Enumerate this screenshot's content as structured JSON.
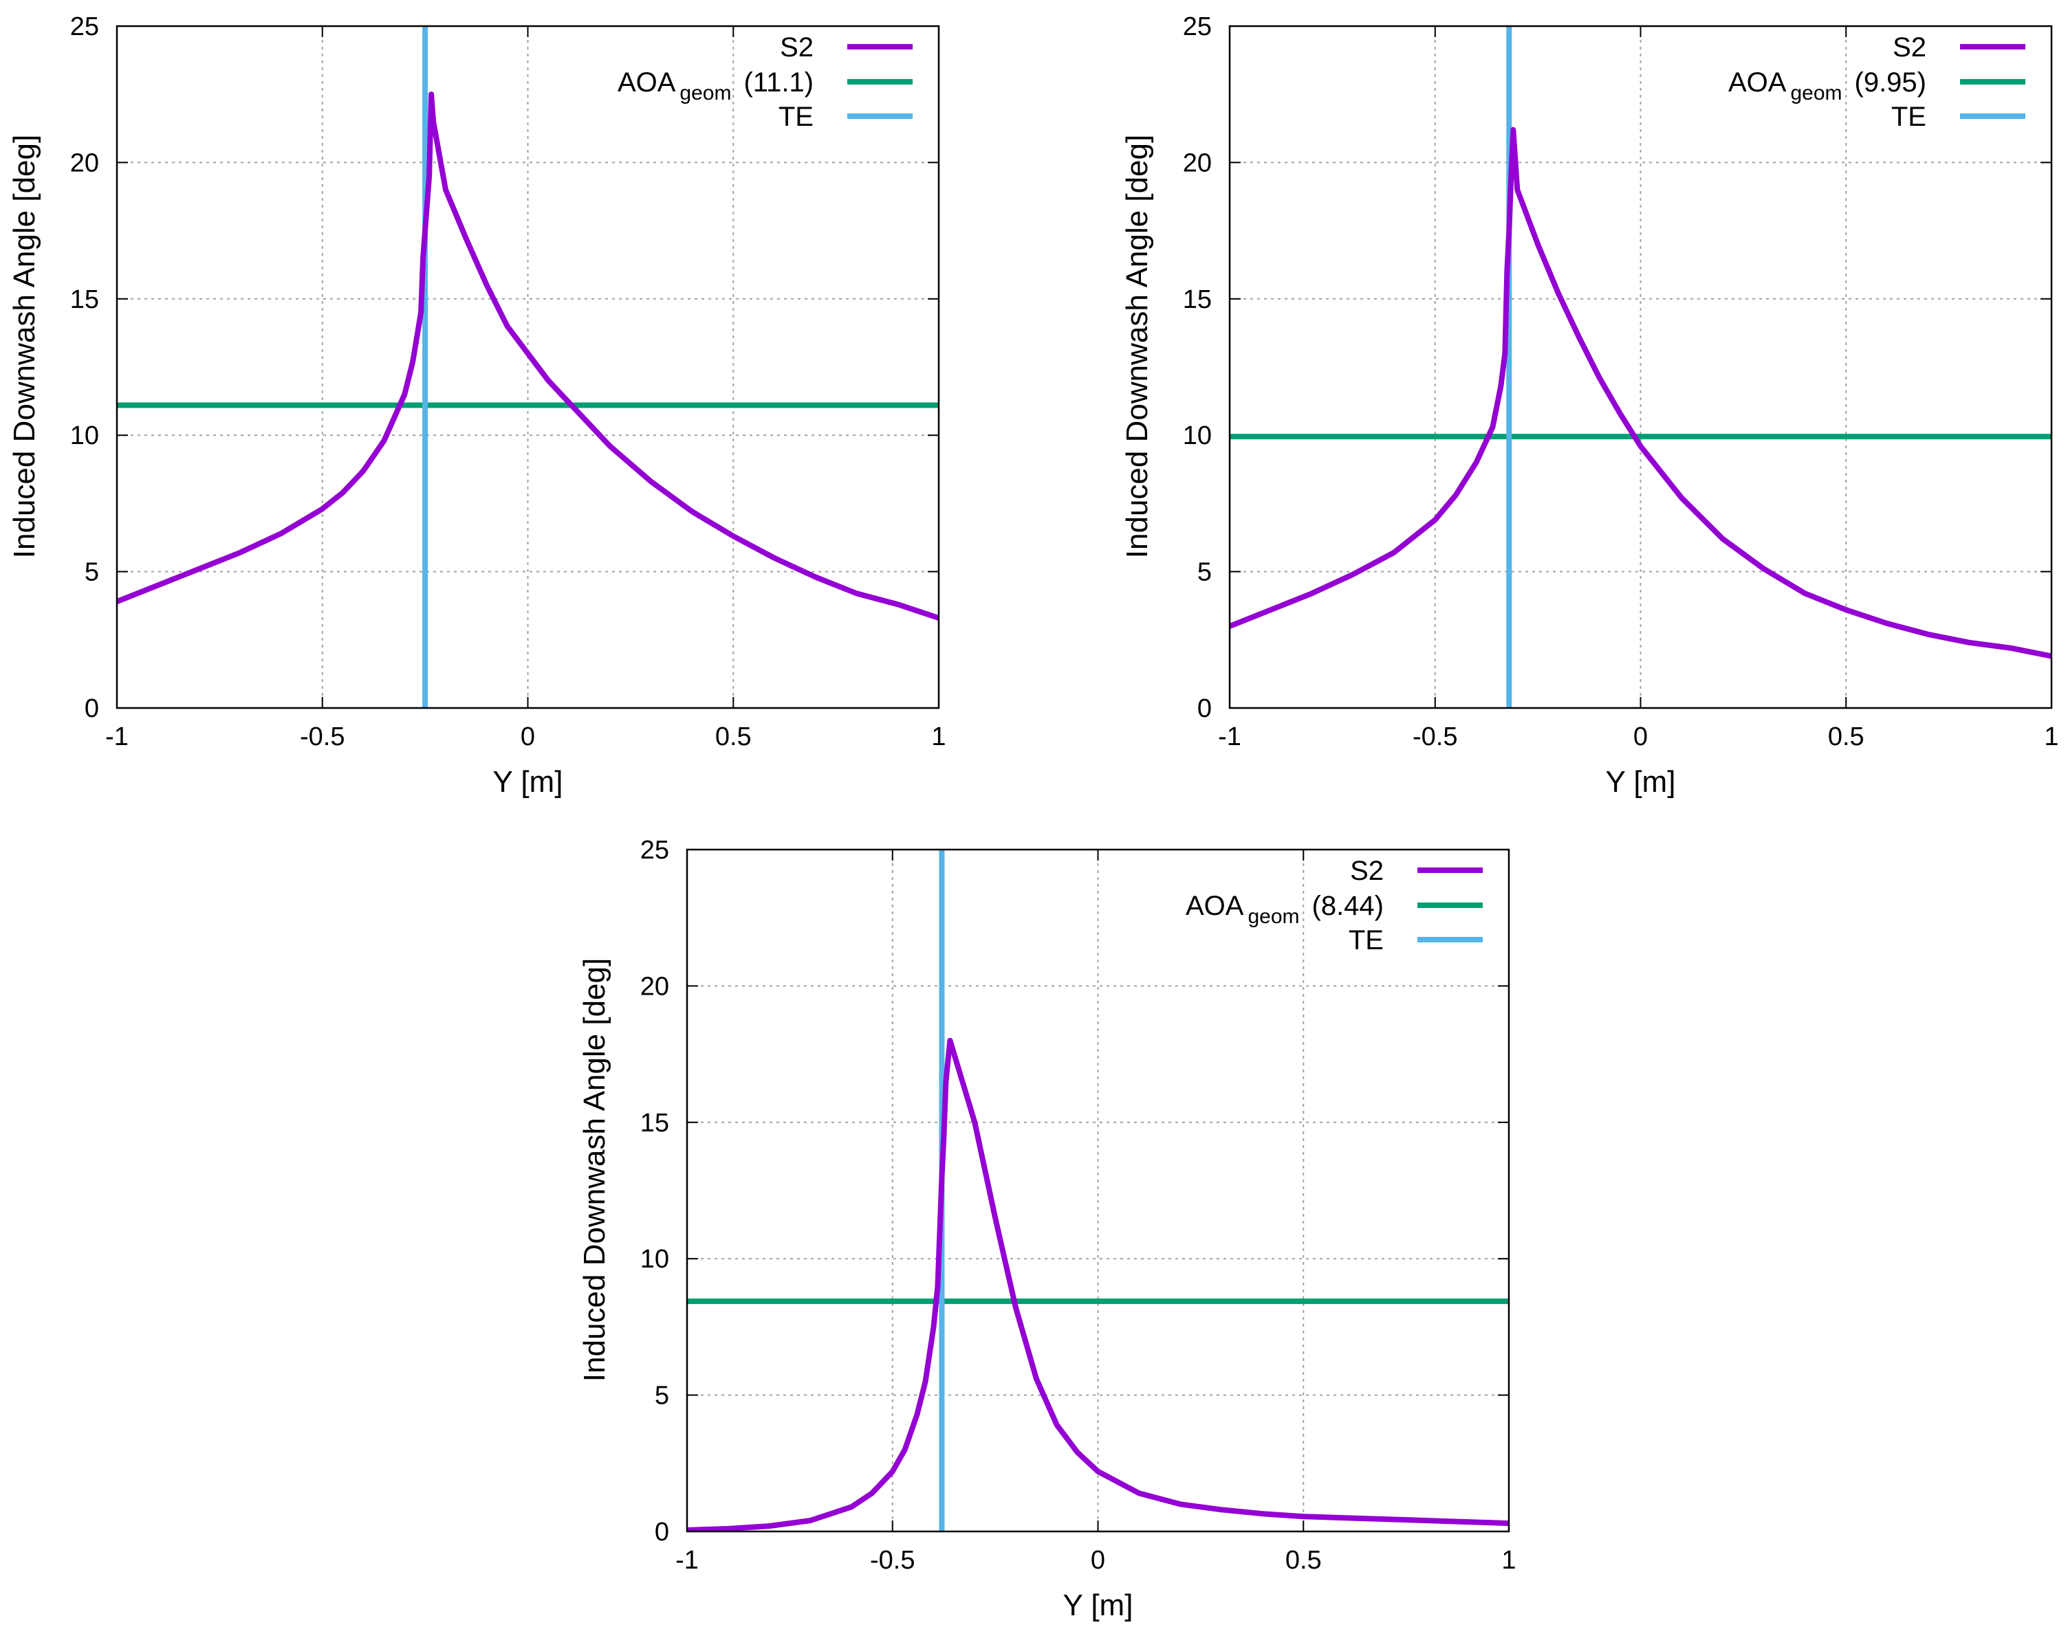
{
  "chart_data": [
    {
      "type": "line",
      "xlabel": "Y [m]",
      "ylabel": "Induced Downwash Angle [deg]",
      "xlim": [
        -1,
        1
      ],
      "ylim": [
        0,
        25
      ],
      "xticks": [
        -1,
        -0.5,
        0,
        0.5,
        1
      ],
      "xtick_labels": [
        "-1",
        "-0.5",
        "0",
        "0.5",
        "1"
      ],
      "yticks": [
        0,
        5,
        10,
        15,
        20,
        25
      ],
      "ytick_labels": [
        "0",
        "5",
        "10",
        "15",
        "20",
        "25"
      ],
      "grid": true,
      "legend_position": "top-right",
      "legend": {
        "s2": "S2",
        "aoa_main": "AOA",
        "aoa_sub": "geom",
        "aoa_value": "(11.1)",
        "te": "TE"
      },
      "colors": {
        "s2": "#9400d3",
        "aoa": "#009e73",
        "te": "#56b4e9"
      },
      "aoa_geom": 11.1,
      "te_y": -0.25,
      "series": [
        {
          "name": "S2",
          "x": [
            -1.0,
            -0.9,
            -0.8,
            -0.7,
            -0.6,
            -0.5,
            -0.45,
            -0.4,
            -0.35,
            -0.3,
            -0.28,
            -0.26,
            -0.255,
            -0.25,
            -0.24,
            -0.235,
            -0.23,
            -0.2,
            -0.15,
            -0.1,
            -0.05,
            0.0,
            0.05,
            0.1,
            0.15,
            0.2,
            0.3,
            0.4,
            0.5,
            0.6,
            0.7,
            0.8,
            0.9,
            1.0
          ],
          "y": [
            3.9,
            4.5,
            5.1,
            5.7,
            6.4,
            7.3,
            7.9,
            8.7,
            9.8,
            11.5,
            12.7,
            14.5,
            16.5,
            17.5,
            19.5,
            22.5,
            21.5,
            19.0,
            17.2,
            15.5,
            14.0,
            13.0,
            12.0,
            11.2,
            10.4,
            9.6,
            8.3,
            7.2,
            6.3,
            5.5,
            4.8,
            4.2,
            3.8,
            3.3
          ]
        }
      ]
    },
    {
      "type": "line",
      "xlabel": "Y [m]",
      "ylabel": "Induced Downwash Angle [deg]",
      "xlim": [
        -1,
        1
      ],
      "ylim": [
        0,
        25
      ],
      "xticks": [
        -1,
        -0.5,
        0,
        0.5,
        1
      ],
      "xtick_labels": [
        "-1",
        "-0.5",
        "0",
        "0.5",
        "1"
      ],
      "yticks": [
        0,
        5,
        10,
        15,
        20,
        25
      ],
      "ytick_labels": [
        "0",
        "5",
        "10",
        "15",
        "20",
        "25"
      ],
      "grid": true,
      "legend_position": "top-right",
      "legend": {
        "s2": "S2",
        "aoa_main": "AOA",
        "aoa_sub": "geom",
        "aoa_value": "(9.95)",
        "te": "TE"
      },
      "colors": {
        "s2": "#9400d3",
        "aoa": "#009e73",
        "te": "#56b4e9"
      },
      "aoa_geom": 9.95,
      "te_y": -0.32,
      "series": [
        {
          "name": "S2",
          "x": [
            -1.0,
            -0.9,
            -0.8,
            -0.7,
            -0.6,
            -0.5,
            -0.45,
            -0.4,
            -0.36,
            -0.34,
            -0.33,
            -0.325,
            -0.32,
            -0.315,
            -0.31,
            -0.3,
            -0.25,
            -0.2,
            -0.15,
            -0.1,
            -0.05,
            0.0,
            0.1,
            0.2,
            0.3,
            0.4,
            0.5,
            0.6,
            0.7,
            0.8,
            0.9,
            1.0
          ],
          "y": [
            3.0,
            3.6,
            4.2,
            4.9,
            5.7,
            6.9,
            7.8,
            9.0,
            10.3,
            11.8,
            13.0,
            16.0,
            17.5,
            19.5,
            21.2,
            19.0,
            17.0,
            15.2,
            13.6,
            12.1,
            10.8,
            9.6,
            7.7,
            6.2,
            5.1,
            4.2,
            3.6,
            3.1,
            2.7,
            2.4,
            2.2,
            1.9
          ]
        }
      ]
    },
    {
      "type": "line",
      "xlabel": "Y [m]",
      "ylabel": "Induced Downwash Angle [deg]",
      "xlim": [
        -1,
        1
      ],
      "ylim": [
        0,
        25
      ],
      "xticks": [
        -1,
        -0.5,
        0,
        0.5,
        1
      ],
      "xtick_labels": [
        "-1",
        "-0.5",
        "0",
        "0.5",
        "1"
      ],
      "yticks": [
        0,
        5,
        10,
        15,
        20,
        25
      ],
      "ytick_labels": [
        "0",
        "5",
        "10",
        "15",
        "20",
        "25"
      ],
      "grid": true,
      "legend_position": "top-right",
      "legend": {
        "s2": "S2",
        "aoa_main": "AOA",
        "aoa_sub": "geom",
        "aoa_value": "(8.44)",
        "te": "TE"
      },
      "colors": {
        "s2": "#9400d3",
        "aoa": "#009e73",
        "te": "#56b4e9"
      },
      "aoa_geom": 8.44,
      "te_y": -0.38,
      "series": [
        {
          "name": "S2",
          "x": [
            -1.0,
            -0.9,
            -0.8,
            -0.7,
            -0.6,
            -0.55,
            -0.5,
            -0.47,
            -0.44,
            -0.42,
            -0.4,
            -0.39,
            -0.385,
            -0.38,
            -0.375,
            -0.37,
            -0.36,
            -0.35,
            -0.3,
            -0.25,
            -0.2,
            -0.15,
            -0.1,
            -0.05,
            0.0,
            0.1,
            0.2,
            0.3,
            0.4,
            0.5,
            0.6,
            0.7,
            0.8,
            0.9,
            1.0
          ],
          "y": [
            0.05,
            0.1,
            0.2,
            0.4,
            0.9,
            1.4,
            2.2,
            3.0,
            4.3,
            5.5,
            7.5,
            9.0,
            11.0,
            13.0,
            14.5,
            16.5,
            18.0,
            17.5,
            15.0,
            11.5,
            8.2,
            5.6,
            3.9,
            2.9,
            2.2,
            1.4,
            1.0,
            0.8,
            0.65,
            0.55,
            0.5,
            0.45,
            0.4,
            0.35,
            0.3
          ]
        }
      ]
    }
  ]
}
